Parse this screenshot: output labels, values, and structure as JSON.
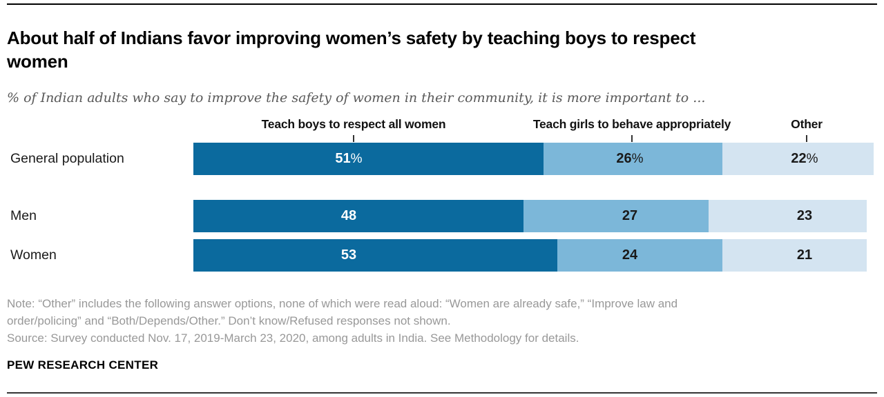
{
  "header": {
    "title": "About half of Indians favor improving women’s safety by teaching boys to respect women",
    "subtitle": "% of Indian adults who say to improve the safety of women in their community, it is more important to ..."
  },
  "chart_data": {
    "type": "bar",
    "stacked": true,
    "orientation": "horizontal",
    "title": "About half of Indians favor improving women’s safety by teaching boys to respect women",
    "subtitle": "% of Indian adults who say to improve the safety of women in their community, it is more important to ...",
    "categories": [
      "General population",
      "Men",
      "Women"
    ],
    "series": [
      {
        "name": "Teach boys to respect all women",
        "color": "#0b6a9e",
        "values": [
          51,
          48,
          53
        ]
      },
      {
        "name": "Teach girls to behave appropriately",
        "color": "#7cb7d9",
        "values": [
          26,
          27,
          24
        ]
      },
      {
        "name": "Other",
        "color": "#d4e4f1",
        "values": [
          22,
          23,
          21
        ]
      }
    ],
    "value_labels": [
      [
        "51%",
        "48",
        "53"
      ],
      [
        "26%",
        "27",
        "24"
      ],
      [
        "22%",
        "23",
        "21"
      ]
    ],
    "axis": {
      "min": 0,
      "max": 99,
      "unit": "percent",
      "gridlines": false
    },
    "legend_position": "column headers above bars",
    "value_label_text_colors": {
      "series0": "#ffffff",
      "series1": "#1a1a1a",
      "series2": "#1a1a1a"
    }
  },
  "notes": {
    "line1": "Note: “Other” includes the following answer options, none of which were read aloud: “Women are already safe,” “Improve law and",
    "line2": "order/policing” and “Both/Depends/Other.” Don’t know/Refused responses not shown.",
    "source": "Source: Survey conducted Nov. 17, 2019-March 23, 2020, among adults in India. See Methodology for details."
  },
  "footer": {
    "brand": "PEW RESEARCH CENTER"
  }
}
